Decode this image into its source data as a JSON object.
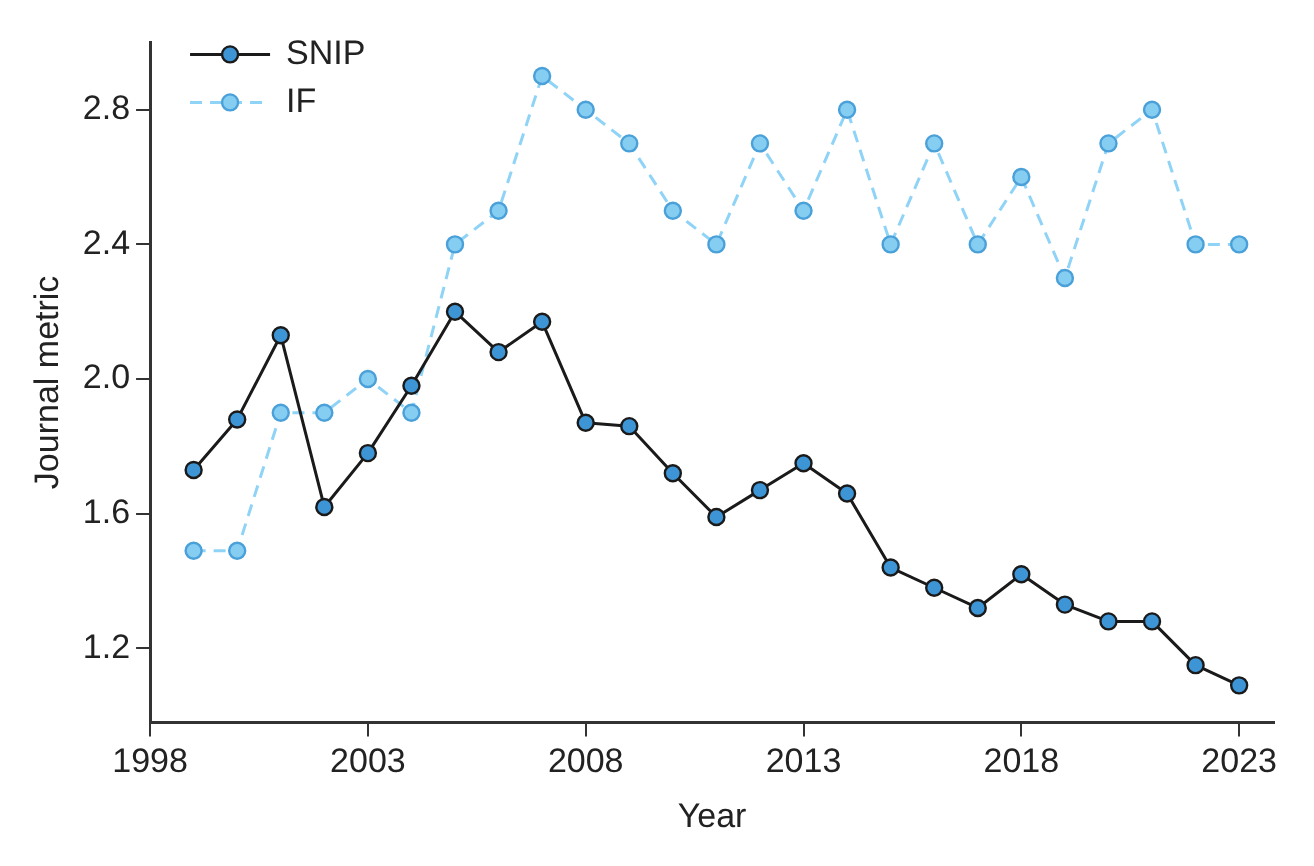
{
  "chart_data": {
    "type": "line",
    "xlabel": "Year",
    "ylabel": "Journal metric",
    "x": [
      1999,
      2000,
      2001,
      2002,
      2003,
      2004,
      2005,
      2006,
      2007,
      2008,
      2009,
      2010,
      2011,
      2012,
      2013,
      2014,
      2015,
      2016,
      2017,
      2018,
      2019,
      2020,
      2021,
      2022,
      2023
    ],
    "series": [
      {
        "name": "SNIP",
        "color": "#1a1a1a",
        "line_style": "solid",
        "values": [
          1.73,
          1.88,
          2.13,
          1.62,
          1.78,
          1.98,
          2.2,
          2.08,
          2.17,
          1.87,
          1.86,
          1.72,
          1.59,
          1.67,
          1.75,
          1.66,
          1.44,
          1.38,
          1.32,
          1.42,
          1.33,
          1.28,
          1.28,
          1.15,
          1.09
        ]
      },
      {
        "name": "IF",
        "color": "#8fd3f7",
        "line_style": "dashed",
        "values": [
          1.49,
          1.49,
          1.9,
          1.9,
          2.0,
          1.9,
          2.4,
          2.5,
          2.9,
          2.8,
          2.7,
          2.5,
          2.4,
          2.7,
          2.5,
          2.8,
          2.4,
          2.7,
          2.4,
          2.6,
          2.3,
          2.7,
          2.8,
          2.4,
          2.4
        ]
      }
    ],
    "xlim": [
      1998,
      2023.8
    ],
    "xticks": [
      1998,
      2003,
      2008,
      2013,
      2018,
      2023
    ],
    "ylim": [
      0.98,
      3.0
    ],
    "yticks": [
      1.2,
      1.6,
      {
        "value": 2,
        "label": "2.0"
      },
      2.4,
      2.8
    ],
    "grid": false,
    "legend": "top left",
    "marker": "circle"
  }
}
